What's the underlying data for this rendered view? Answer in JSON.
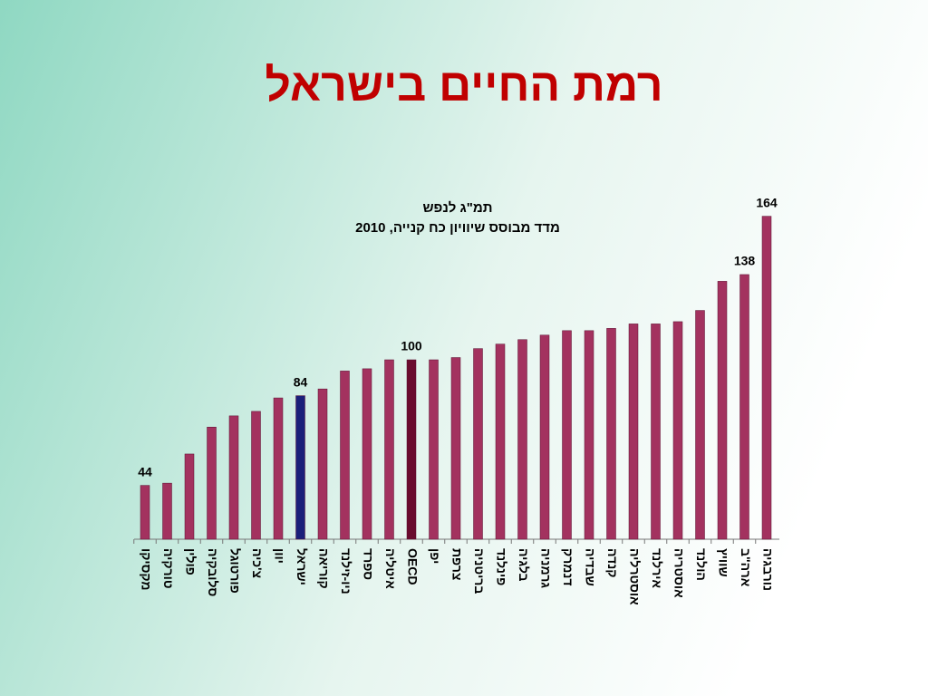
{
  "chart_data": {
    "type": "bar",
    "title": "רמת החיים בישראל",
    "subtitle": [
      "תמ\"ג לנפש",
      "מדד מבוסס שיוויון כח קנייה, 2010"
    ],
    "categories": [
      "מקסיקו",
      "טורקיה",
      "פולין",
      "סלובקיה",
      "פורטוגל",
      "צ'כיה",
      "יוון",
      "ישראל",
      "קוריאה",
      "ניו-זילנד",
      "ספרד",
      "איטליה",
      "OECD",
      "יפן",
      "צרפת",
      "בריטניה",
      "פינלנד",
      "בלגיה",
      "גרמניה",
      "דנמרק",
      "שבדיה",
      "קנדה",
      "אוסטרליה",
      "אירלנד",
      "אוסטריה",
      "הולנד",
      "שוויץ",
      "ארה\"ב",
      "נורבגיה"
    ],
    "values": [
      44,
      45,
      58,
      70,
      75,
      77,
      83,
      84,
      87,
      95,
      96,
      100,
      100,
      100,
      101,
      105,
      107,
      109,
      111,
      113,
      113,
      114,
      116,
      116,
      117,
      122,
      135,
      138,
      164
    ],
    "value_labels": [
      "44",
      null,
      null,
      null,
      null,
      null,
      null,
      "84",
      null,
      null,
      null,
      null,
      "100",
      null,
      null,
      null,
      null,
      null,
      null,
      null,
      null,
      null,
      null,
      null,
      null,
      null,
      null,
      "138",
      "164"
    ],
    "colors": [
      "#a3325f",
      "#a3325f",
      "#a3325f",
      "#a3325f",
      "#a3325f",
      "#a3325f",
      "#a3325f",
      "#1a1f7a",
      "#a3325f",
      "#a3325f",
      "#a3325f",
      "#a3325f",
      "#6a0b2e",
      "#a3325f",
      "#a3325f",
      "#a3325f",
      "#a3325f",
      "#a3325f",
      "#a3325f",
      "#a3325f",
      "#a3325f",
      "#a3325f",
      "#a3325f",
      "#a3325f",
      "#a3325f",
      "#a3325f",
      "#a3325f",
      "#a3325f",
      "#a3325f"
    ],
    "ylim": [
      20,
      180
    ]
  }
}
